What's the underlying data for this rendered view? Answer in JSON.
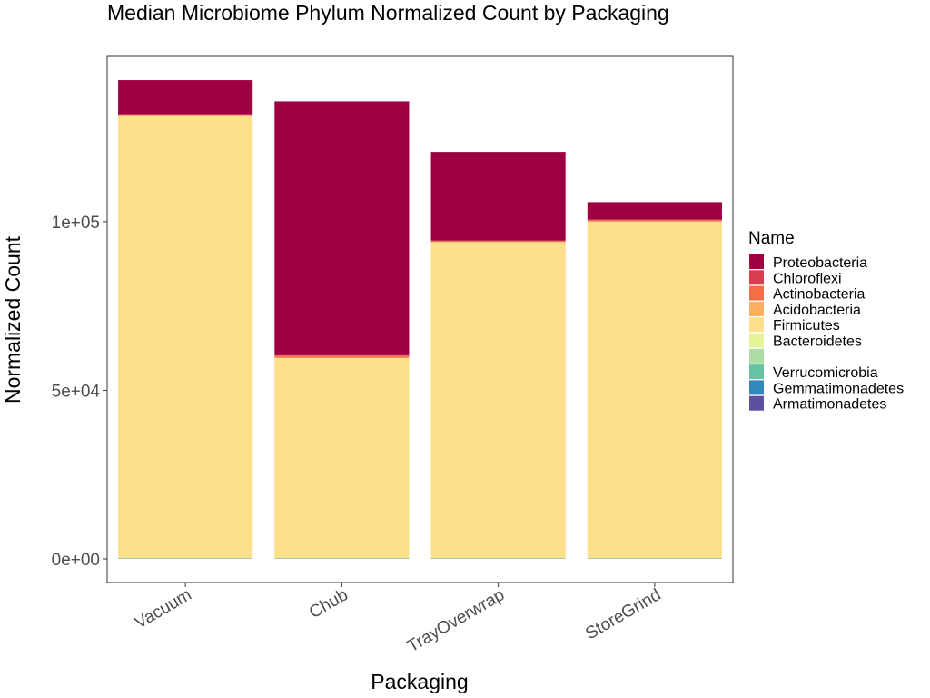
{
  "chart_data": {
    "type": "bar",
    "stacked": true,
    "title": "Median Microbiome Phylum Normalized Count by Packaging",
    "xlabel": "Packaging",
    "ylabel": "Normalized Count",
    "categories": [
      "Vacuum",
      "Chub",
      "TrayOverwrap",
      "StoreGrind"
    ],
    "ylim": [
      -7000,
      149000
    ],
    "yticks": [
      {
        "value": 0,
        "label": "0e+00"
      },
      {
        "value": 50000,
        "label": "5e+04"
      },
      {
        "value": 100000,
        "label": "1e+05"
      }
    ],
    "grid": false,
    "legend": {
      "title": "Name",
      "position": "right"
    },
    "series": [
      {
        "name": "Armatimonadetes",
        "color": "#5E4FA2",
        "values": [
          30,
          30,
          30,
          30
        ]
      },
      {
        "name": "Gemmatimonadetes",
        "color": "#3288BD",
        "values": [
          80,
          80,
          80,
          80
        ]
      },
      {
        "name": "Verrucomicrobia",
        "color": "#66C2A5",
        "values": [
          100,
          100,
          100,
          100
        ]
      },
      {
        "name": "",
        "color": "#ABDDA4",
        "values": [
          30,
          30,
          30,
          30
        ]
      },
      {
        "name": "Bacteroidetes",
        "color": "#E6F598",
        "values": [
          40,
          40,
          40,
          40
        ]
      },
      {
        "name": "Firmicutes",
        "color": "#FEE08B",
        "values": [
          131000,
          59300,
          93600,
          99700
        ]
      },
      {
        "name": "Acidobacteria",
        "color": "#FDAE61",
        "values": [
          100,
          100,
          100,
          100
        ]
      },
      {
        "name": "Actinobacteria",
        "color": "#F46D43",
        "values": [
          400,
          600,
          300,
          400
        ]
      },
      {
        "name": "Chloroflexi",
        "color": "#D53E4F",
        "values": [
          100,
          100,
          100,
          100
        ]
      },
      {
        "name": "Proteobacteria",
        "color": "#9E0142",
        "values": [
          10100,
          75300,
          26300,
          5200
        ]
      }
    ],
    "legend_order": [
      "Proteobacteria",
      "Chloroflexi",
      "Actinobacteria",
      "Acidobacteria",
      "Firmicutes",
      "Bacteroidetes",
      "",
      "Verrucomicrobia",
      "Gemmatimonadetes",
      "Armatimonadetes"
    ]
  }
}
